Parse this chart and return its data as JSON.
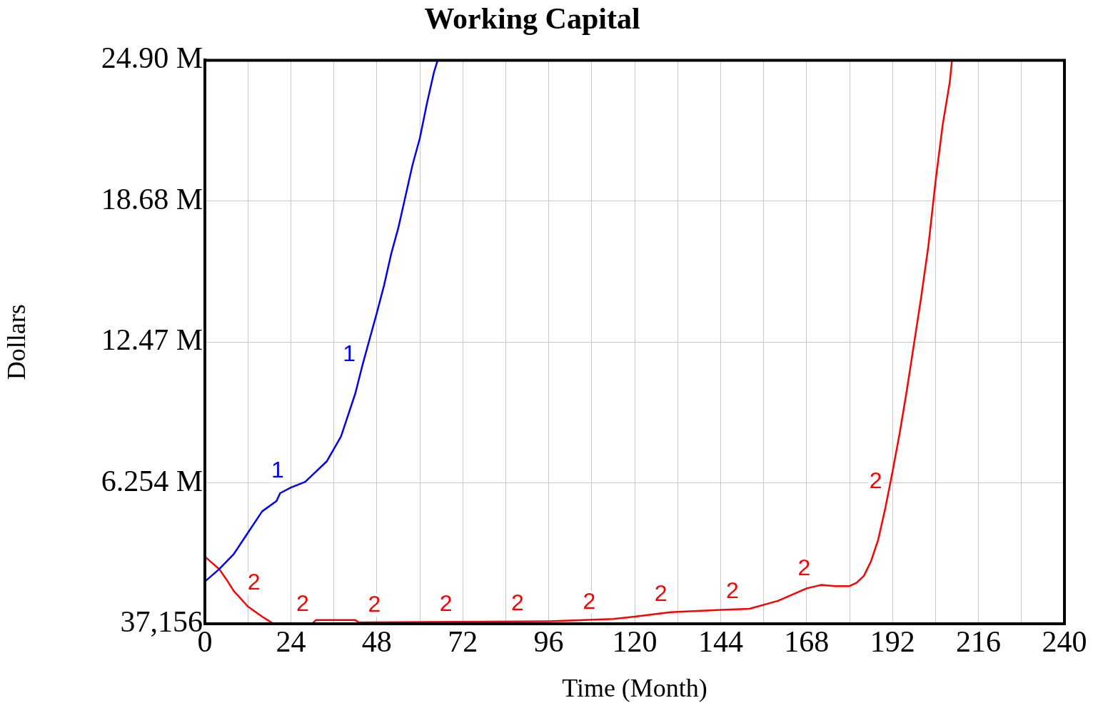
{
  "chart_data": {
    "type": "line",
    "title": "Working Capital",
    "xlabel": "Time (Month)",
    "ylabel": "Dollars",
    "xlim": [
      0,
      240
    ],
    "xticks": [
      0,
      {
        "value": 12,
        "label": null
      },
      24,
      {
        "value": 36,
        "label": null
      },
      48,
      {
        "value": 60,
        "label": null
      },
      72,
      {
        "value": 84,
        "label": null
      },
      96,
      {
        "value": 108,
        "label": null
      },
      120,
      {
        "value": 132,
        "label": null
      },
      144,
      {
        "value": 156,
        "label": null
      },
      168,
      {
        "value": 180,
        "label": null
      },
      192,
      {
        "value": 204,
        "label": null
      },
      216,
      {
        "value": 228,
        "label": null
      },
      240
    ],
    "ylim": [
      37156,
      24900000
    ],
    "yticks": [
      {
        "value": 37156,
        "label": "37,156"
      },
      {
        "value": 6254000,
        "label": "6.254 M"
      },
      {
        "value": 12470000,
        "label": "12.47 M"
      },
      {
        "value": 18680000,
        "label": "18.68 M"
      },
      {
        "value": 24900000,
        "label": "24.90 M"
      }
    ],
    "grid": true,
    "legend": false,
    "marker": "none",
    "line_style": "solid",
    "series": [
      {
        "name": "1",
        "color": "#0000ff",
        "x": [
          0,
          4,
          8,
          12,
          16,
          20,
          21,
          24,
          28,
          30,
          34,
          38,
          40,
          42,
          44,
          46,
          48,
          50,
          52,
          54,
          56,
          58,
          60,
          62,
          64,
          65
        ],
        "values": [
          1900000,
          2450000,
          3100000,
          4050000,
          5000000,
          5450000,
          5800000,
          6050000,
          6300000,
          6600000,
          7200000,
          8300000,
          9250000,
          10200000,
          11450000,
          12600000,
          13750000,
          14950000,
          16350000,
          17500000,
          18900000,
          20300000,
          21450000,
          23000000,
          24400000,
          24900000
        ]
      },
      {
        "name": "2",
        "color": "#ff0000",
        "x": [
          0,
          4,
          6,
          8,
          12,
          16,
          18,
          19,
          30,
          31,
          42,
          43,
          96,
          114,
          120,
          130,
          144,
          152,
          160,
          168,
          172,
          176,
          180,
          182,
          184,
          186,
          188,
          190,
          192,
          194,
          196,
          198,
          200,
          202,
          204,
          206,
          208,
          208.6
        ],
        "values": [
          3000000,
          2450000,
          2000000,
          1500000,
          800000,
          350000,
          150000,
          50000,
          50000,
          200000,
          200000,
          100000,
          150000,
          250000,
          350000,
          550000,
          650000,
          700000,
          1050000,
          1600000,
          1750000,
          1700000,
          1700000,
          1850000,
          2150000,
          2800000,
          3750000,
          5150000,
          6750000,
          8450000,
          10350000,
          12400000,
          14450000,
          16700000,
          19550000,
          22050000,
          23950000,
          24900000
        ]
      }
    ]
  }
}
